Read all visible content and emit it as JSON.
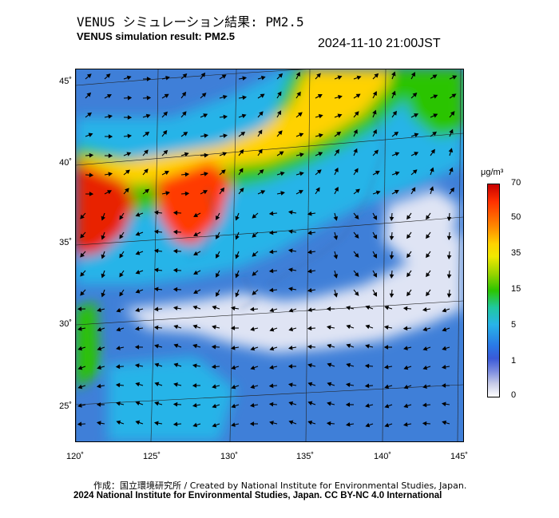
{
  "header": {
    "title_jp": "VENUS シミュレーション結果: PM2.5",
    "title_en": "VENUS simulation result: PM2.5",
    "timestamp": "2024-11-10 21:00JST"
  },
  "map": {
    "lat_labels": [
      "45˚",
      "40˚",
      "35˚",
      "30˚",
      "25˚"
    ],
    "lon_labels": [
      "120˚",
      "125˚",
      "130˚",
      "135˚",
      "140˚",
      "145˚"
    ],
    "colors": {
      "background_low": "#3f7fd8",
      "high": "#e82000",
      "mid": "#ffd200",
      "green": "#2cc400",
      "cyan": "#28b4e8",
      "pale": "#dfe4f4",
      "grid": "#222222",
      "arrow": "#000000"
    }
  },
  "colorbar": {
    "unit": "μg/m³",
    "ticks": [
      "70",
      "50",
      "35",
      "15",
      "5",
      "1",
      "0"
    ]
  },
  "footer": {
    "credit": "作成：国立環境研究所 / Created by National Institute for Environmental Studies, Japan.",
    "license": "2024 National Institute for Environmental Studies, Japan. CC BY-NC 4.0 International"
  }
}
